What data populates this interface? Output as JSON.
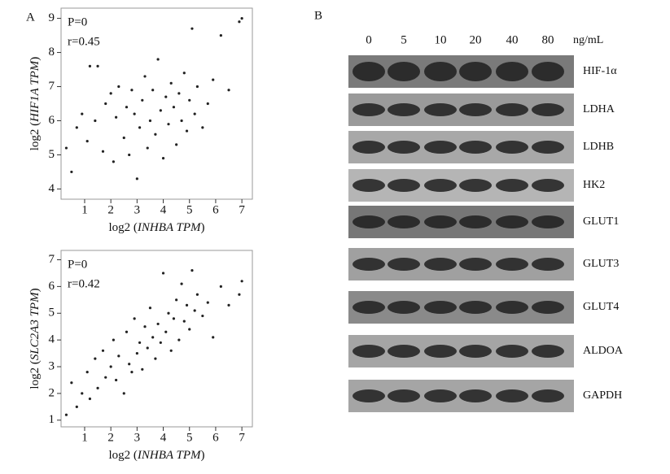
{
  "chart_data": [
    {
      "type": "scatter",
      "panel": "A",
      "stats": [
        "P=0",
        "r=0.45"
      ],
      "x_label": {
        "prefix": "log2 (",
        "italic": "INHBA TPM",
        "suffix": ")"
      },
      "y_label": {
        "prefix": "log2 (",
        "italic": "HIF1A TPM",
        "suffix": ")"
      },
      "xlim": [
        0.1,
        7.4
      ],
      "ylim": [
        3.7,
        9.3
      ],
      "xticks": [
        1,
        2,
        3,
        4,
        5,
        6,
        7
      ],
      "yticks": [
        4,
        5,
        6,
        7,
        8,
        9
      ],
      "color": "#222",
      "x": [
        0.3,
        0.5,
        0.7,
        0.9,
        1.1,
        1.2,
        1.4,
        1.5,
        1.7,
        1.8,
        2.0,
        2.1,
        2.2,
        2.3,
        2.5,
        2.6,
        2.7,
        2.8,
        2.9,
        3.0,
        3.1,
        3.2,
        3.3,
        3.4,
        3.5,
        3.6,
        3.7,
        3.8,
        3.9,
        4.0,
        4.1,
        4.2,
        4.3,
        4.4,
        4.5,
        4.6,
        4.7,
        4.8,
        4.9,
        5.0,
        5.1,
        5.2,
        5.3,
        5.5,
        5.7,
        5.9,
        6.2,
        6.5,
        6.9,
        7.0
      ],
      "values": [
        5.2,
        4.5,
        5.8,
        6.2,
        5.4,
        7.6,
        6.0,
        7.6,
        5.1,
        6.5,
        6.8,
        4.8,
        6.1,
        7.0,
        5.5,
        6.4,
        5.0,
        6.9,
        6.2,
        4.3,
        5.8,
        6.6,
        7.3,
        5.2,
        6.0,
        6.9,
        5.6,
        7.8,
        6.3,
        4.9,
        6.7,
        5.9,
        7.1,
        6.4,
        5.3,
        6.8,
        6.0,
        7.4,
        5.7,
        6.6,
        8.7,
        6.2,
        7.0,
        5.8,
        6.5,
        7.2,
        8.5,
        6.9,
        8.9,
        9.0
      ]
    },
    {
      "type": "scatter",
      "stats": [
        "P=0",
        "r=0.42"
      ],
      "x_label": {
        "prefix": "log2 (",
        "italic": "INHBA TPM",
        "suffix": ")"
      },
      "y_label": {
        "prefix": "log2 (",
        "italic": "SLC2A3 TPM",
        "suffix": ")"
      },
      "xlim": [
        0.1,
        7.4
      ],
      "ylim": [
        0.75,
        7.35
      ],
      "xticks": [
        1,
        2,
        3,
        4,
        5,
        6,
        7
      ],
      "yticks": [
        1,
        2,
        3,
        4,
        5,
        6,
        7
      ],
      "color": "#222",
      "x": [
        0.3,
        0.5,
        0.7,
        0.9,
        1.1,
        1.2,
        1.4,
        1.5,
        1.7,
        1.8,
        2.0,
        2.1,
        2.2,
        2.3,
        2.5,
        2.6,
        2.7,
        2.8,
        2.9,
        3.0,
        3.1,
        3.2,
        3.3,
        3.4,
        3.5,
        3.6,
        3.7,
        3.8,
        3.9,
        4.0,
        4.1,
        4.2,
        4.3,
        4.4,
        4.5,
        4.6,
        4.7,
        4.8,
        4.9,
        5.0,
        5.1,
        5.2,
        5.3,
        5.5,
        5.7,
        5.9,
        6.2,
        6.5,
        6.9,
        7.0
      ],
      "values": [
        1.2,
        2.4,
        1.5,
        2.0,
        2.8,
        1.8,
        3.3,
        2.2,
        3.6,
        2.6,
        3.0,
        4.0,
        2.5,
        3.4,
        2.0,
        4.3,
        3.1,
        2.8,
        4.8,
        3.5,
        3.9,
        2.9,
        4.5,
        3.7,
        5.2,
        4.1,
        3.3,
        4.6,
        3.9,
        6.5,
        4.3,
        5.0,
        3.6,
        4.8,
        5.5,
        4.0,
        6.1,
        4.7,
        5.3,
        4.4,
        6.6,
        5.1,
        5.7,
        4.9,
        5.4,
        4.1,
        6.0,
        5.3,
        5.7,
        6.2
      ]
    }
  ],
  "panel_b": {
    "panel": "B",
    "doses": [
      "0",
      "5",
      "10",
      "20",
      "40",
      "80"
    ],
    "unit": "ng/mL",
    "proteins": [
      "HIF-1α",
      "LDHA",
      "LDHB",
      "HK2",
      "GLUT1",
      "GLUT3",
      "GLUT4",
      "ALDOA",
      "GAPDH"
    ]
  }
}
